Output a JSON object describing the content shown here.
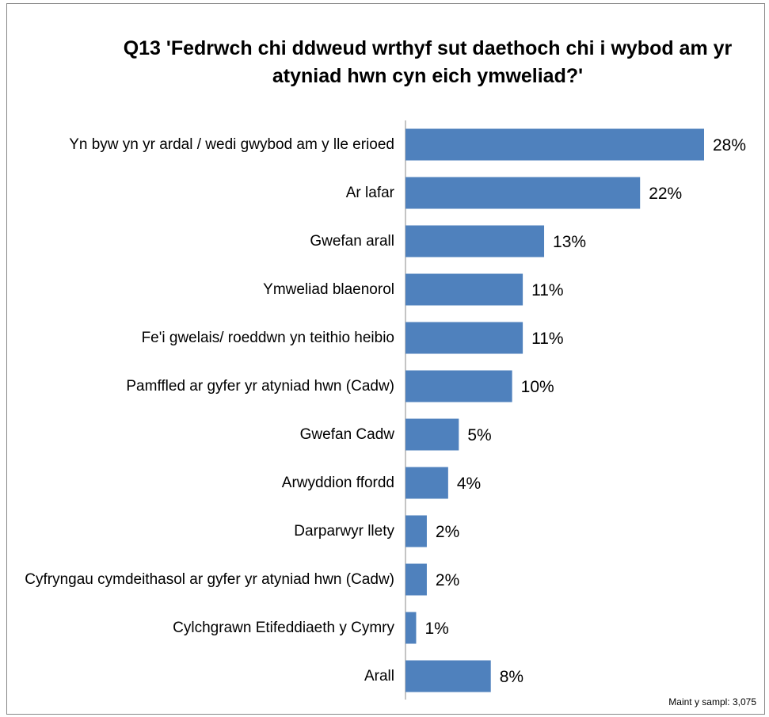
{
  "chart_data": {
    "type": "bar",
    "orientation": "horizontal",
    "title": "Q13 'Fedrwch chi ddweud wrthyf sut daethoch chi i wybod am yr atyniad hwn cyn eich ymweliad?'",
    "categories": [
      "Yn byw yn yr ardal / wedi gwybod am y lle erioed",
      "Ar lafar",
      "Gwefan arall",
      "Ymweliad blaenorol",
      "Fe'i gwelais/ roeddwn yn teithio heibio",
      "Pamffled ar gyfer yr atyniad hwn (Cadw)",
      "Gwefan Cadw",
      "Arwyddion ffordd",
      "Darparwyr llety",
      "Cyfryngau cymdeithasol ar gyfer yr atyniad hwn (Cadw)",
      "Cylchgrawn Etifeddiaeth y Cymry",
      "Arall"
    ],
    "values": [
      28,
      22,
      13,
      11,
      11,
      10,
      5,
      4,
      2,
      2,
      1,
      8
    ],
    "value_labels": [
      "28%",
      "22%",
      "13%",
      "11%",
      "11%",
      "10%",
      "5%",
      "4%",
      "2%",
      "2%",
      "1%",
      "8%"
    ],
    "color": "#4f81bd",
    "xlim": [
      0,
      28
    ],
    "annotation": "Maint y sampl: 3,075"
  }
}
